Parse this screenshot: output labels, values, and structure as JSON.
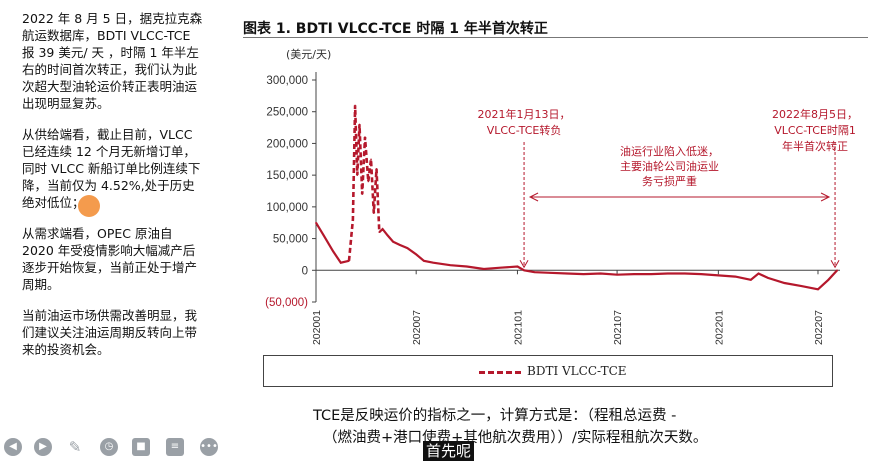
{
  "left_panel": {
    "paragraphs": [
      "2022 年 8 月 5 日，据克拉克森航运数据库，BDTI VLCC-TCE 报 39 美元/ 天 ，时隔 1 年半左右的时间首次转正，我们认为此次超大型油轮运价转正表明油运出现明显复苏。",
      "从供给端看，截止目前，VLCC 已经连续 12 个月无新增订单，同时 VLCC 新船订单比例连续下降，当前仅为 4.52%,处于历史绝对低位；",
      "从需求端看，OPEC 原油自 2020 年受疫情影响大幅减产后逐步开始恢复，当前正处于增产周期。",
      "当前油运市场供需改善明显，我们建议关注油运周期反转向上带来的投资机会。"
    ]
  },
  "chart_title": "图表 1. BDTI VLCC-TCE 时隔 1 年半首次转正",
  "chart_data": {
    "type": "line",
    "title": "图表 1. BDTI VLCC-TCE 时隔 1 年半首次转正",
    "ylabel": "(美元/天)",
    "ylim": [
      -50000,
      300000
    ],
    "yticks": [
      "300,000",
      "250,000",
      "200,000",
      "150,000",
      "100,000",
      "50,000",
      "0",
      "(50,000)"
    ],
    "ytick_values": [
      300000,
      250000,
      200000,
      150000,
      100000,
      50000,
      0,
      -50000
    ],
    "xticks": [
      "202001",
      "202007",
      "202101",
      "202107",
      "202201",
      "202207"
    ],
    "xlim": [
      "2020-01",
      "2022-08"
    ],
    "legend": "top-bottom box",
    "series": [
      {
        "name": "BDTI VLCC-TCE",
        "color": "#b5182c",
        "style": "solid with dashed spike segment",
        "x": [
          "2020-01-01",
          "2020-01-15",
          "2020-02-01",
          "2020-02-15",
          "2020-03-01",
          "2020-03-08",
          "2020-03-12",
          "2020-03-16",
          "2020-03-20",
          "2020-03-25",
          "2020-03-30",
          "2020-04-05",
          "2020-04-10",
          "2020-04-15",
          "2020-04-20",
          "2020-04-25",
          "2020-05-01",
          "2020-05-10",
          "2020-05-20",
          "2020-06-01",
          "2020-06-15",
          "2020-07-01",
          "2020-07-15",
          "2020-08-01",
          "2020-09-01",
          "2020-10-01",
          "2020-11-01",
          "2020-12-01",
          "2021-01-01",
          "2021-01-13",
          "2021-02-01",
          "2021-03-01",
          "2021-04-01",
          "2021-05-01",
          "2021-06-01",
          "2021-07-01",
          "2021-08-01",
          "2021-09-01",
          "2021-10-01",
          "2021-11-01",
          "2021-12-01",
          "2022-01-01",
          "2022-02-01",
          "2022-03-01",
          "2022-03-15",
          "2022-04-01",
          "2022-05-01",
          "2022-06-01",
          "2022-07-01",
          "2022-07-20",
          "2022-08-05"
        ],
        "values": [
          75000,
          55000,
          30000,
          12000,
          15000,
          80000,
          260000,
          150000,
          230000,
          120000,
          210000,
          140000,
          175000,
          90000,
          160000,
          60000,
          65000,
          55000,
          45000,
          40000,
          35000,
          25000,
          15000,
          12000,
          8000,
          6000,
          2000,
          4000,
          6000,
          0,
          -3000,
          -4000,
          -5000,
          -6000,
          -5000,
          -7000,
          -6000,
          -6000,
          -5000,
          -5000,
          -6000,
          -8000,
          -10000,
          -15000,
          -5000,
          -12000,
          -20000,
          -25000,
          -30000,
          -15000,
          39
        ]
      }
    ],
    "annotations": [
      "2021年1月13日，VLCC-TCE转负",
      "油运行业陷入低迷，主要油轮公司油运业务亏损严重",
      "2022年8月5日，VLCC-TCE时隔1年半首次转正"
    ]
  },
  "caption": {
    "line1": "TCE是反映运价的指标之一，计算方式是：（程租总运费 -",
    "line2": "（燃油费+港口使费+其他航次费用））/实际程租航次天数。"
  },
  "subtitle_overlay": "首先呢",
  "toolbar": {
    "icons": [
      "prev-icon",
      "play-icon",
      "pen-icon",
      "clock-icon",
      "camera-icon",
      "caption-icon",
      "more-icon"
    ]
  }
}
